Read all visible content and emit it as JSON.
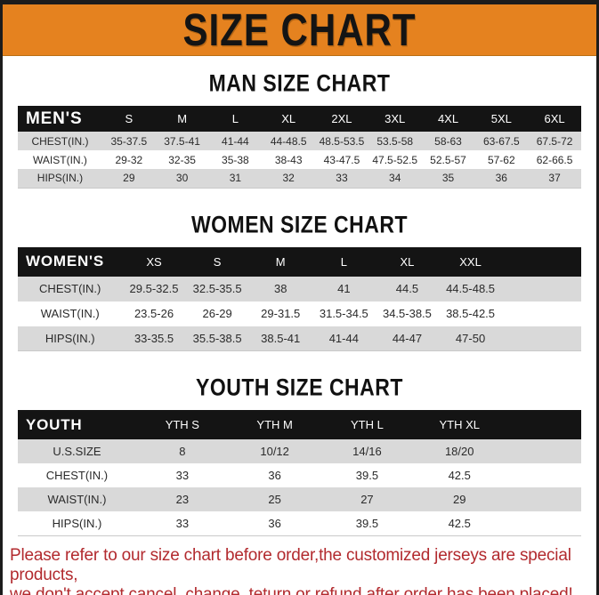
{
  "banner": {
    "title": "SIZE CHART"
  },
  "colors": {
    "banner_bg": "#e5821f",
    "header_bg": "#141414",
    "stripe": "#d9d9d9",
    "footer_red": "#b22a2e"
  },
  "sections": [
    {
      "heading": "MAN SIZE CHART",
      "table": {
        "label": "MEN'S",
        "columns": [
          "S",
          "M",
          "L",
          "XL",
          "2XL",
          "3XL",
          "4XL",
          "5XL",
          "6XL"
        ],
        "rows": [
          {
            "label": "CHEST(IN.)",
            "values": [
              "35-37.5",
              "37.5-41",
              "41-44",
              "44-48.5",
              "48.5-53.5",
              "53.5-58",
              "58-63",
              "63-67.5",
              "67.5-72"
            ]
          },
          {
            "label": "WAIST(IN.)",
            "values": [
              "29-32",
              "32-35",
              "35-38",
              "38-43",
              "43-47.5",
              "47.5-52.5",
              "52.5-57",
              "57-62",
              "62-66.5"
            ]
          },
          {
            "label": "HIPS(IN.)",
            "values": [
              "29",
              "30",
              "31",
              "32",
              "33",
              "34",
              "35",
              "36",
              "37"
            ]
          }
        ]
      }
    },
    {
      "heading": "WOMEN SIZE CHART",
      "table": {
        "label": "WOMEN'S",
        "columns": [
          "XS",
          "S",
          "M",
          "L",
          "XL",
          "XXL"
        ],
        "rows": [
          {
            "label": "CHEST(IN.)",
            "values": [
              "29.5-32.5",
              "32.5-35.5",
              "38",
              "41",
              "44.5",
              "44.5-48.5"
            ]
          },
          {
            "label": "WAIST(IN.)",
            "values": [
              "23.5-26",
              "26-29",
              "29-31.5",
              "31.5-34.5",
              "34.5-38.5",
              "38.5-42.5"
            ]
          },
          {
            "label": "HIPS(IN.)",
            "values": [
              "33-35.5",
              "35.5-38.5",
              "38.5-41",
              "41-44",
              "44-47",
              "47-50"
            ]
          }
        ]
      }
    },
    {
      "heading": "YOUTH SIZE CHART",
      "table": {
        "label": "YOUTH",
        "columns": [
          "YTH S",
          "YTH M",
          "YTH L",
          "YTH XL"
        ],
        "rows": [
          {
            "label": "U.S.SIZE",
            "values": [
              "8",
              "10/12",
              "14/16",
              "18/20"
            ]
          },
          {
            "label": "CHEST(IN.)",
            "values": [
              "33",
              "36",
              "39.5",
              "42.5"
            ]
          },
          {
            "label": "WAIST(IN.)",
            "values": [
              "23",
              "25",
              "27",
              "29"
            ]
          },
          {
            "label": "HIPS(IN.)",
            "values": [
              "33",
              "36",
              "39.5",
              "42.5"
            ]
          }
        ]
      }
    }
  ],
  "footer": {
    "line1": "Please refer to our size chart before order,the customized jerseys are special products,",
    "line2": "we don't accept cancel, change, teturn or refund after order has been placed!"
  }
}
